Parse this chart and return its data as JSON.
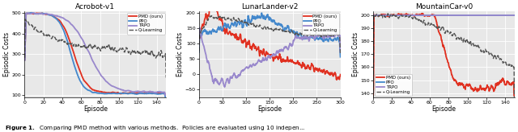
{
  "fig_width": 6.4,
  "fig_height": 1.64,
  "dpi": 100,
  "fig_bg_color": "#ffffff",
  "ax_bg_color": "#e8e8e8",
  "grid_color": "#ffffff",
  "subplots": [
    {
      "title": "Acrobot-v1",
      "xlabel": "Episode",
      "ylabel": "Episodic Costs",
      "xlim": [
        0,
        150
      ],
      "ylim": [
        90,
        510
      ],
      "yticks": [
        100,
        200,
        300,
        400,
        500
      ],
      "xticks": [
        0,
        20,
        40,
        60,
        80,
        100,
        120,
        140
      ],
      "legend_loc": "upper right",
      "series": [
        {
          "label": "PMD (ours)",
          "color": "#e03020",
          "lw": 1.3
        },
        {
          "label": "PPO",
          "color": "#4488cc",
          "lw": 1.3
        },
        {
          "label": "TRPO",
          "color": "#9988cc",
          "lw": 1.3
        },
        {
          "label": "Q-Learning",
          "color": "#555555",
          "lw": 1.0
        }
      ]
    },
    {
      "title": "LunarLander-v2",
      "xlabel": "Episode",
      "ylabel": "Episodic Costs",
      "xlim": [
        0,
        300
      ],
      "ylim": [
        -75,
        205
      ],
      "yticks": [
        -50,
        0,
        50,
        100,
        150,
        200
      ],
      "xticks": [
        0,
        50,
        100,
        150,
        200,
        250,
        300
      ],
      "legend_loc": "upper right",
      "series": [
        {
          "label": "PMD (ours)",
          "color": "#e03020",
          "lw": 1.3
        },
        {
          "label": "PPO",
          "color": "#4488cc",
          "lw": 1.3
        },
        {
          "label": "TRPO",
          "color": "#9988cc",
          "lw": 1.3
        },
        {
          "label": "Q-Learning",
          "color": "#555555",
          "lw": 1.0
        }
      ]
    },
    {
      "title": "MountainCar-v0",
      "xlabel": "Episode",
      "ylabel": "Episodic Costs",
      "xlim": [
        0,
        150
      ],
      "ylim": [
        137,
        203
      ],
      "yticks": [
        140,
        150,
        160,
        170,
        180,
        190,
        200
      ],
      "xticks": [
        0,
        20,
        40,
        60,
        80,
        100,
        120,
        140
      ],
      "legend_loc": "lower left",
      "series": [
        {
          "label": "PMD (ours)",
          "color": "#e03020",
          "lw": 1.3
        },
        {
          "label": "PPO",
          "color": "#4488cc",
          "lw": 1.3
        },
        {
          "label": "TRPO",
          "color": "#9988cc",
          "lw": 1.3
        },
        {
          "label": "Q-Learning",
          "color": "#555555",
          "lw": 1.0
        }
      ]
    }
  ]
}
